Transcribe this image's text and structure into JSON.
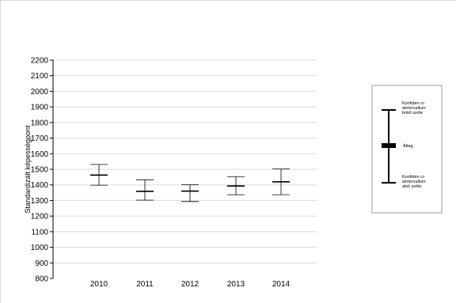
{
  "chart_data": {
    "type": "error-bar",
    "ylabel": "Standardizált képességpont",
    "categories": [
      "2010",
      "2011",
      "2012",
      "2013",
      "2014"
    ],
    "series": [
      {
        "mean": [
          1463,
          1359,
          1360,
          1393,
          1420
        ],
        "lower": [
          1398,
          1302,
          1293,
          1337,
          1337
        ],
        "upper": [
          1531,
          1433,
          1401,
          1453,
          1502
        ]
      }
    ],
    "ylim": [
      800,
      2200
    ],
    "yticks": [
      800,
      900,
      1000,
      1100,
      1200,
      1300,
      1400,
      1500,
      1600,
      1700,
      1800,
      1900,
      2000,
      2100,
      2200
    ],
    "grid": true,
    "legend": {
      "placement": "right",
      "upper_label": [
        "Konfiden ci-",
        "aintervallum",
        "felső széle"
      ],
      "mean_label": "Átlag",
      "lower_label": [
        "Konfiden ci-",
        "aintervallum",
        "alsó széle"
      ]
    }
  }
}
